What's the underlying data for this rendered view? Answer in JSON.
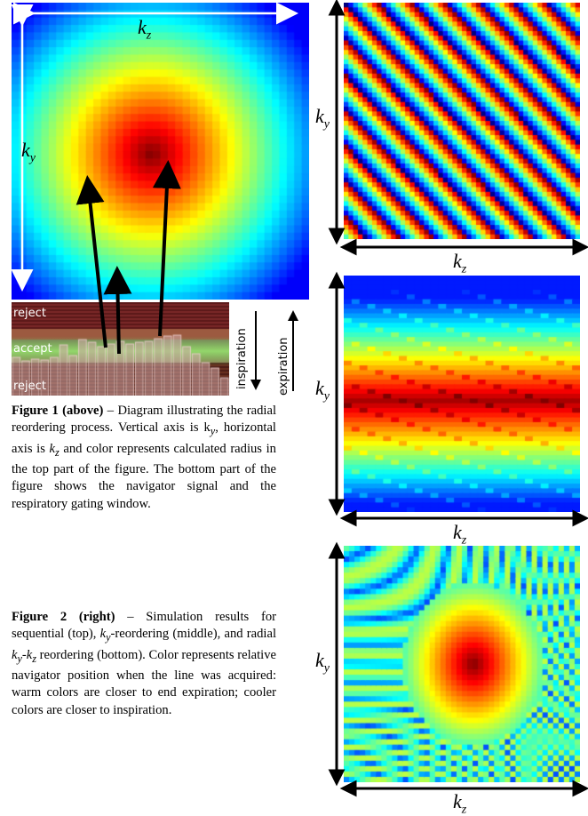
{
  "figure1": {
    "axis_top": "k",
    "axis_top_sub": "z",
    "axis_left": "k",
    "axis_left_sub": "y",
    "nav_labels": {
      "reject_top": "reject",
      "accept": "accept",
      "reject_bottom": "reject"
    },
    "direction_labels": {
      "inspiration": "inspiration",
      "expiration": "expiration"
    }
  },
  "figure2": {
    "panels": [
      {
        "name": "sequential",
        "ylabel": "k",
        "ylabel_sub": "y",
        "xlabel": "k",
        "xlabel_sub": "z"
      },
      {
        "name": "ky-reordering",
        "ylabel": "k",
        "ylabel_sub": "y",
        "xlabel": "k",
        "xlabel_sub": "z"
      },
      {
        "name": "radial",
        "ylabel": "k",
        "ylabel_sub": "y",
        "xlabel": "k",
        "xlabel_sub": "z"
      }
    ]
  },
  "captions": {
    "fig1_head": "Figure 1 (above)",
    "fig1_body": " – Diagram illustrating the radial reordering process. Vertical axis is k",
    "fig1_y": "y",
    "fig1_mid": ", horizontal axis is ",
    "fig1_kz": "k",
    "fig1_z": "z",
    "fig1_tail": " and color represents calculated radius in the top part of the figure. The bottom part of the figure shows the navigator signal and the respiratory gating window.",
    "fig2_head": "Figure 2 (right)",
    "fig2_body1": " – Simulation results for sequential (top), ",
    "fig2_ky": "k",
    "fig2_y": "y",
    "fig2_body2": "-reordering (middle), and radial ",
    "fig2_ky2": "k",
    "fig2_y2": "y",
    "fig2_dash": "-",
    "fig2_kz2": "k",
    "fig2_z2": "z",
    "fig2_tail": " reordering (bottom). Color represents relative navigator position when the line was acquired: warm colors are closer to end expiration; cooler colors are closer to inspiration."
  }
}
